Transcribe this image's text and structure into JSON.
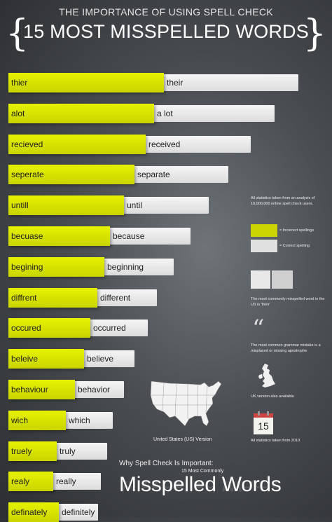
{
  "header": {
    "supertitle": "THE IMPORTANCE OF USING SPELL CHECK",
    "title": "15 MOST MISSPELLED WORDS",
    "brace_left": "{",
    "brace_right": "}"
  },
  "words": [
    {
      "incorrect": "thier",
      "correct": "their"
    },
    {
      "incorrect": "alot",
      "correct": "a lot"
    },
    {
      "incorrect": "recieved",
      "correct": "received"
    },
    {
      "incorrect": "seperate",
      "correct": "separate"
    },
    {
      "incorrect": "untill",
      "correct": "until"
    },
    {
      "incorrect": "becuase",
      "correct": "because"
    },
    {
      "incorrect": "begining",
      "correct": "beginning"
    },
    {
      "incorrect": "diffrent",
      "correct": "different"
    },
    {
      "incorrect": "occured",
      "correct": "occurred"
    },
    {
      "incorrect": "beleive",
      "correct": "believe"
    },
    {
      "incorrect": "behaviour",
      "correct": "behavior"
    },
    {
      "incorrect": "wich",
      "correct": "which"
    },
    {
      "incorrect": "truely",
      "correct": "truly"
    },
    {
      "incorrect": "realy",
      "correct": "really"
    },
    {
      "incorrect": "definately",
      "correct": "definitely"
    }
  ],
  "sidebar": {
    "stats_note": "All statistics taken from an analysis of 10,000,000 online spell check users.",
    "legend_incorrect": "= Incorrect spellings",
    "legend_correct": "= Correct spelling",
    "most_misspelled_note": "The most commonly misspelled word in the US is 'their'",
    "grammar_note": "The most common grammar mistake is a misplaced or missing apostrophe",
    "uk_note": "UK version also available",
    "calendar_number": "15",
    "year_note": "All statistics taken from 2010"
  },
  "map": {
    "label": "United States (US) Version"
  },
  "footer": {
    "why": "Why Spell Check Is Important:",
    "subtitle": "15 Most Commonly",
    "big": "Misspelled Words"
  },
  "colors": {
    "incorrect": "#d4e000",
    "correct": "#e6e6e6",
    "background": "#44484c"
  }
}
